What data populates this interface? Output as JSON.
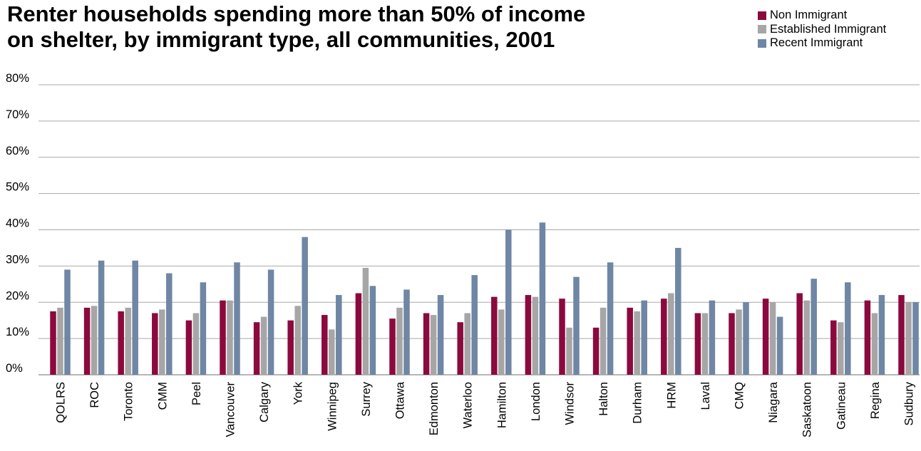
{
  "chart_data": {
    "type": "bar",
    "title_lines": [
      "Renter households spending more than 50% of income",
      "on shelter, by immigrant type, all communities, 2001"
    ],
    "xlabel": "",
    "ylabel": "",
    "ylim": [
      0,
      80
    ],
    "yticks": [
      0,
      10,
      20,
      30,
      40,
      50,
      60,
      70,
      80
    ],
    "ytick_labels": [
      "0%",
      "10%",
      "20%",
      "30%",
      "40%",
      "50%",
      "60%",
      "70%",
      "80%"
    ],
    "grid": true,
    "legend_position": "top-right",
    "categories": [
      "QOLRS",
      "ROC",
      "Toronto",
      "CMM",
      "Peel",
      "Vancouver",
      "Calgary",
      "York",
      "Winnipeg",
      "Surrey",
      "Ottawa",
      "Edmonton",
      "Waterloo",
      "Hamilton",
      "London",
      "Windsor",
      "Halton",
      "Durham",
      "HRM",
      "Laval",
      "CMQ",
      "Niagara",
      "Saskatoon",
      "Gatineau",
      "Regina",
      "Sudbury"
    ],
    "series": [
      {
        "name": "Non Immigrant",
        "color": "#8b0a3e",
        "values": [
          17.5,
          18.5,
          17.5,
          17,
          15,
          20.5,
          14.5,
          15,
          16.5,
          22.5,
          15.5,
          17,
          14.5,
          21.5,
          22,
          21,
          13,
          18.5,
          21,
          17,
          17,
          21,
          22.5,
          15,
          20.5,
          22
        ]
      },
      {
        "name": "Established Immigrant",
        "color": "#a6a6a6",
        "values": [
          18.5,
          19,
          18.5,
          18,
          17,
          20.5,
          16,
          19,
          12.5,
          29.5,
          18.5,
          16.5,
          17,
          18,
          21.5,
          13,
          18.5,
          17.5,
          22.5,
          17,
          18,
          20,
          20.5,
          14.5,
          17,
          20
        ]
      },
      {
        "name": "Recent Immigrant",
        "color": "#6f86a4",
        "values": [
          29,
          31.5,
          31.5,
          28,
          25.5,
          31,
          29,
          38,
          22,
          24.5,
          23.5,
          22,
          27.5,
          40,
          42,
          27,
          31,
          20.5,
          35,
          20.5,
          20,
          16,
          26.5,
          25.5,
          22,
          20
        ]
      }
    ]
  }
}
